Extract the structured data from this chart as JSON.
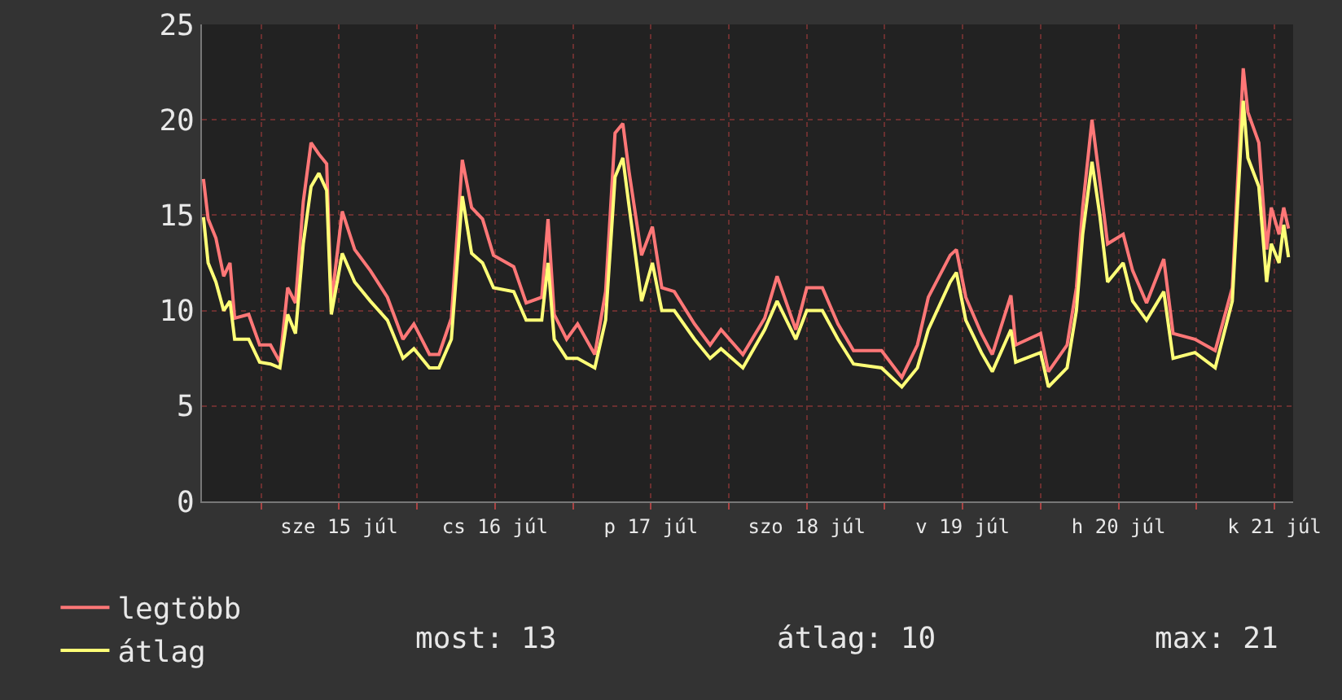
{
  "chart_data": {
    "type": "line",
    "x": [
      "--07-14T15:07",
      "--07-14T15:50",
      "--07-14T17:02",
      "--07-14T18:14",
      "--07-14T19:12",
      "--07-14T19:55",
      "--07-14T22:05",
      "--07-14T23:46",
      "--07-15T01:26",
      "--07-15T02:53",
      "--07-15T04:05",
      "--07-15T05:17",
      "--07-15T06:29",
      "--07-15T07:41",
      "--07-15T08:53",
      "--07-15T10:05",
      "--07-15T10:48",
      "--07-15T12:29",
      "--07-15T14:24",
      "--07-15T16:48",
      "--07-15T19:26",
      "--07-15T21:50",
      "--07-15T23:31",
      "--07-16T01:55",
      "--07-16T03:22",
      "--07-16T05:17",
      "--07-16T06:58",
      "--07-16T08:24",
      "--07-16T10:05",
      "--07-16T11:46",
      "--07-16T14:53",
      "--07-16T16:48",
      "--07-16T19:12",
      "--07-16T20:10",
      "--07-16T21:07",
      "--07-16T23:02",
      "--07-17T00:43",
      "--07-17T03:22",
      "--07-17T05:02",
      "--07-17T06:29",
      "--07-17T07:41",
      "--07-17T08:38",
      "--07-17T10:34",
      "--07-17T12:14",
      "--07-17T13:41",
      "--07-17T15:36",
      "--07-17T18:43",
      "--07-17T21:07",
      "--07-17T22:48",
      "--07-18T02:10",
      "--07-18T05:31",
      "--07-18T07:26",
      "--07-18T10:19",
      "--07-18T12:00",
      "--07-18T14:24",
      "--07-18T16:48",
      "--07-18T19:12",
      "--07-18T23:31",
      "--07-19T02:38",
      "--07-19T05:02",
      "--07-19T06:43",
      "--07-19T10:05",
      "--07-19T11:02",
      "--07-19T12:29",
      "--07-19T14:53",
      "--07-19T16:34",
      "--07-19T19:26",
      "--07-19T20:10",
      "--07-20T00:00",
      "--07-20T01:12",
      "--07-20T04:05",
      "--07-20T05:31",
      "--07-20T06:29",
      "--07-20T07:55",
      "--07-20T09:07",
      "--07-20T10:19",
      "--07-20T12:43",
      "--07-20T14:10",
      "--07-20T16:19",
      "--07-20T18:58",
      "--07-20T20:24",
      "--07-20T23:46",
      "--07-21T02:53",
      "--07-21T05:31",
      "--07-21T07:12",
      "--07-21T07:55",
      "--07-21T09:36",
      "--07-21T10:48",
      "--07-21T11:31",
      "--07-21T12:43",
      "--07-21T13:26",
      "--07-21T14:10"
    ],
    "series": [
      {
        "name": "legtöbb",
        "color": "#ff7777",
        "values": [
          16.9,
          14.8,
          13.8,
          11.8,
          12.5,
          9.6,
          9.8,
          8.2,
          8.2,
          7.3,
          11.2,
          10.4,
          15.7,
          18.8,
          18.2,
          17.7,
          10.4,
          15.2,
          13.2,
          12.1,
          10.7,
          8.5,
          9.3,
          7.7,
          7.7,
          9.6,
          17.9,
          15.4,
          14.8,
          12.9,
          12.3,
          10.4,
          10.7,
          14.8,
          9.8,
          8.5,
          9.3,
          7.7,
          11,
          19.3,
          19.8,
          17.3,
          12.9,
          14.4,
          11.2,
          11,
          9.3,
          8.2,
          9,
          7.7,
          9.6,
          11.8,
          9,
          11.2,
          11.2,
          9.3,
          7.9,
          7.9,
          6.5,
          8.2,
          10.7,
          12.9,
          13.2,
          10.7,
          8.8,
          7.7,
          10.8,
          8.2,
          8.8,
          6.8,
          8.2,
          11.2,
          15.4,
          20,
          16.8,
          13.5,
          14,
          12.1,
          10.4,
          12.7,
          8.8,
          8.5,
          7.9,
          11.2,
          22.7,
          20.4,
          18.8,
          13.2,
          15.4,
          14,
          15.4,
          14.3
        ]
      },
      {
        "name": "átlag",
        "color": "#ffff77",
        "values": [
          14.9,
          12.5,
          11.5,
          10.0,
          10.5,
          8.5,
          8.5,
          7.3,
          7.2,
          7.0,
          9.8,
          8.8,
          13.5,
          16.5,
          17.2,
          16.3,
          9.8,
          13.0,
          11.5,
          10.5,
          9.5,
          7.5,
          8.0,
          7.0,
          7.0,
          8.5,
          16.0,
          13.0,
          12.5,
          11.2,
          11.0,
          9.5,
          9.5,
          12.5,
          8.5,
          7.5,
          7.5,
          7.0,
          9.5,
          17.0,
          18.0,
          15.5,
          10.5,
          12.5,
          10.0,
          10.0,
          8.5,
          7.5,
          8.0,
          7.0,
          9.0,
          10.5,
          8.5,
          10.0,
          10.0,
          8.5,
          7.2,
          7.0,
          6.0,
          7.0,
          9.0,
          11.5,
          12.0,
          9.5,
          7.8,
          6.8,
          9.0,
          7.3,
          7.8,
          6.0,
          7.0,
          10.0,
          14.0,
          17.8,
          15.0,
          11.5,
          12.5,
          10.5,
          9.5,
          11.0,
          7.5,
          7.8,
          7.0,
          10.5,
          21.0,
          18.0,
          16.5,
          11.5,
          13.5,
          12.5,
          14.5,
          12.8
        ]
      }
    ],
    "xlim": [
      "--07-14T14:53",
      "--07-21T14:53"
    ],
    "xticks": [
      {
        "value": "--07-15",
        "label": null
      },
      {
        "value": "--07-15T12:00",
        "label": "sze 15 júl"
      },
      {
        "value": "--07-16",
        "label": null
      },
      {
        "value": "--07-16T12:00",
        "label": "cs 16 júl"
      },
      {
        "value": "--07-17",
        "label": null
      },
      {
        "value": "--07-17T12:00",
        "label": "p 17 júl"
      },
      {
        "value": "--07-18",
        "label": null
      },
      {
        "value": "--07-18T12:00",
        "label": "szo 18 júl"
      },
      {
        "value": "--07-19",
        "label": null
      },
      {
        "value": "--07-19T12:00",
        "label": "v 19 júl"
      },
      {
        "value": "--07-20",
        "label": null
      },
      {
        "value": "--07-20T12:00",
        "label": "h 20 júl"
      },
      {
        "value": "--07-21",
        "label": null
      },
      {
        "value": "--07-21T12:00",
        "label": "k 21 júl"
      }
    ],
    "ylim": [
      0,
      25
    ],
    "yticks": [
      0,
      5,
      10,
      15,
      20,
      25
    ],
    "grid": true,
    "legend": "bottom left",
    "marker": "none",
    "line_style": "solid",
    "annotations": [
      "most: 13",
      "átlag: 10",
      "max: 21"
    ]
  }
}
